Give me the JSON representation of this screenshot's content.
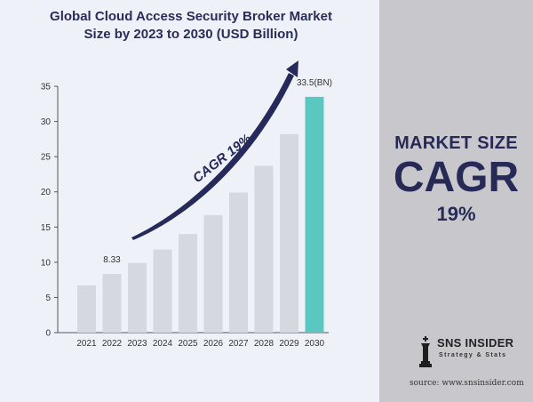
{
  "colors": {
    "bar": "#d5d8de",
    "highlight_bar": "#5ac8c0",
    "arrow": "#262a5a",
    "axis": "#555555",
    "text_dark": "#272a57"
  },
  "chart_data": {
    "type": "bar",
    "title_line1": "Global Cloud Access Security Broker Market",
    "title_line2": "Size by 2023 to 2030 (USD Billion)",
    "categories": [
      "2021",
      "2022",
      "2023",
      "2024",
      "2025",
      "2026",
      "2027",
      "2028",
      "2029",
      "2030"
    ],
    "values": [
      6.7,
      8.33,
      9.9,
      11.8,
      14.0,
      16.7,
      19.9,
      23.7,
      28.2,
      33.5
    ],
    "highlight_index": 9,
    "data_labels": [
      {
        "index": 1,
        "text": "8.33"
      },
      {
        "index": 9,
        "text": "33.5(BN)"
      }
    ],
    "ylim": [
      0,
      35
    ],
    "yticks": [
      0,
      5,
      10,
      15,
      20,
      25,
      30,
      35
    ],
    "grid": false,
    "annotation": "CAGR 19%"
  },
  "kpi": {
    "title": "MARKET SIZE",
    "big": "CAGR",
    "value": "19%"
  },
  "brand": {
    "name": "SNS INSIDER",
    "tagline": "Strategy & Stats",
    "source": "source: www.snsinsider.com"
  }
}
